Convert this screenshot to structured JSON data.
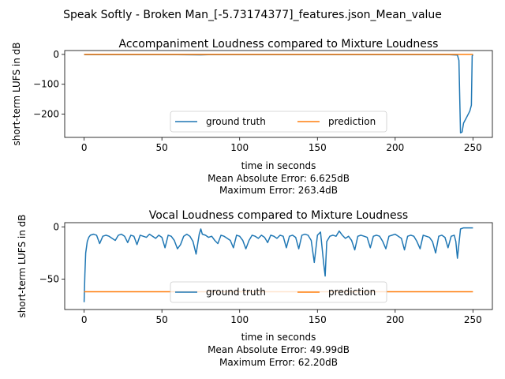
{
  "figure": {
    "suptitle": "Speak Softly - Broken Man_[-5.73174377]_features.json_Mean_value"
  },
  "colors": {
    "ground_truth": "#1f77b4",
    "prediction": "#ff7f0e"
  },
  "chart_data": [
    {
      "type": "line",
      "title": "Accompaniment Loudness compared to Mixture Loudness",
      "xlabel": "time in seconds",
      "ylabel": "short-term LUFS in dB",
      "notes": [
        "Mean Absolute Error: 6.625dB",
        "Maximum Error: 263.4dB"
      ],
      "xlim": [
        -12.5,
        262.5
      ],
      "ylim": [
        -278,
        13
      ],
      "xticks": [
        0,
        50,
        100,
        150,
        200,
        250
      ],
      "yticks": [
        0,
        -100,
        -200
      ],
      "legend": {
        "position": "lower-center",
        "ncol": 2
      },
      "series": [
        {
          "name": "ground truth",
          "color_key": "ground_truth",
          "x": [
            0,
            20,
            40,
            60,
            75,
            80,
            100,
            120,
            140,
            160,
            180,
            200,
            220,
            235,
            240,
            241,
            242,
            243,
            244,
            246,
            248,
            249,
            249.5,
            250
          ],
          "y": [
            -1,
            -1,
            -1,
            -1,
            -1.5,
            -1,
            -1,
            -1,
            -1,
            -1,
            -1,
            -1,
            -1,
            -1,
            -2,
            -20,
            -263,
            -260,
            -230,
            -210,
            -190,
            -170,
            -5,
            -1
          ]
        },
        {
          "name": "prediction",
          "color_key": "prediction",
          "x": [
            0,
            250
          ],
          "y": [
            0,
            0
          ]
        }
      ]
    },
    {
      "type": "line",
      "title": "Vocal Loudness compared to Mixture Loudness",
      "xlabel": "time in seconds",
      "ylabel": "short-term LUFS in dB",
      "notes": [
        "Mean Absolute Error: 49.99dB",
        "Maximum Error: 62.20dB"
      ],
      "xlim": [
        -12.5,
        262.5
      ],
      "ylim": [
        -79,
        4
      ],
      "xticks": [
        0,
        50,
        100,
        150,
        200,
        250
      ],
      "yticks": [
        0,
        -50
      ],
      "legend": {
        "position": "lower-center",
        "ncol": 2
      },
      "series": [
        {
          "name": "ground truth",
          "color_key": "ground_truth",
          "x": [
            0,
            0.5,
            1,
            2,
            3,
            4,
            6,
            8,
            10,
            12,
            14,
            16,
            18,
            20,
            22,
            24,
            26,
            28,
            30,
            32,
            34,
            36,
            38,
            40,
            42,
            44,
            46,
            48,
            50,
            52,
            54,
            56,
            58,
            60,
            62,
            64,
            66,
            68,
            70,
            72,
            74,
            75,
            76,
            78,
            80,
            82,
            84,
            86,
            88,
            90,
            92,
            94,
            96,
            98,
            100,
            102,
            104,
            106,
            108,
            110,
            112,
            114,
            116,
            118,
            120,
            122,
            124,
            126,
            128,
            130,
            132,
            134,
            136,
            138,
            140,
            142,
            144,
            146,
            148,
            150,
            152,
            153,
            154,
            155,
            156,
            158,
            160,
            162,
            164,
            166,
            168,
            170,
            172,
            174,
            176,
            178,
            180,
            182,
            184,
            186,
            188,
            190,
            192,
            194,
            196,
            198,
            200,
            202,
            204,
            206,
            208,
            210,
            212,
            214,
            216,
            218,
            220,
            222,
            224,
            226,
            228,
            230,
            232,
            234,
            236,
            238,
            239,
            240,
            242,
            244,
            246,
            248,
            250
          ],
          "y": [
            -72,
            -45,
            -25,
            -14,
            -10,
            -8,
            -7,
            -8,
            -16,
            -9,
            -8,
            -9,
            -11,
            -13,
            -8,
            -7,
            -9,
            -15,
            -8,
            -9,
            -17,
            -8,
            -9,
            -10,
            -7,
            -9,
            -11,
            -8,
            -10,
            -20,
            -8,
            -9,
            -13,
            -21,
            -17,
            -9,
            -7,
            -9,
            -14,
            -26,
            -7,
            -2,
            -7,
            -8,
            -10,
            -9,
            -13,
            -16,
            -8,
            -9,
            -11,
            -13,
            -20,
            -8,
            -9,
            -13,
            -21,
            -13,
            -8,
            -9,
            -11,
            -8,
            -10,
            -15,
            -8,
            -9,
            -11,
            -8,
            -9,
            -20,
            -9,
            -8,
            -10,
            -21,
            -8,
            -7,
            -8,
            -13,
            -34,
            -8,
            -5,
            -20,
            -35,
            -47,
            -14,
            -9,
            -8,
            -9,
            -4,
            -8,
            -11,
            -9,
            -13,
            -22,
            -9,
            -8,
            -9,
            -10,
            -20,
            -9,
            -8,
            -9,
            -14,
            -21,
            -9,
            -8,
            -7,
            -9,
            -11,
            -22,
            -9,
            -8,
            -9,
            -14,
            -21,
            -8,
            -9,
            -10,
            -14,
            -25,
            -9,
            -8,
            -10,
            -20,
            -9,
            -8,
            -14,
            -30,
            -2,
            -1,
            -1,
            -1,
            -1
          ]
        },
        {
          "name": "prediction",
          "color_key": "prediction",
          "x": [
            0,
            250
          ],
          "y": [
            -62,
            -62
          ]
        }
      ]
    }
  ]
}
